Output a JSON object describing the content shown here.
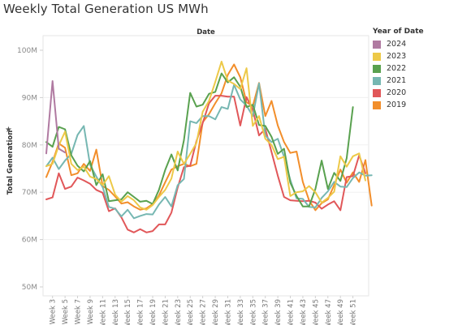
{
  "chart_data": {
    "type": "line",
    "title": "Weekly Total Generation US MWh",
    "column_header": "Date",
    "ylabel": "Total Generation",
    "ylim": [
      50000000,
      100000000
    ],
    "y_ticks": [
      "100M",
      "90M",
      "80M",
      "70M",
      "60M",
      "50M"
    ],
    "x_ticks": [
      "Week 3",
      "Week 5",
      "Week 7",
      "Week 9",
      "Week 11",
      "Week 13",
      "Week 15",
      "Week 17",
      "Week 19",
      "Week 21",
      "Week 23",
      "Week 25",
      "Week 27",
      "Week 29",
      "Week 31",
      "Week 33",
      "Week 35",
      "Week 37",
      "Week 39",
      "Week 41",
      "Week 43",
      "Week 45",
      "Week 47",
      "Week 49",
      "Week 51"
    ],
    "weeks": [
      2,
      53
    ],
    "legend_title": "Year of Date",
    "series": [
      {
        "name": "2019",
        "color": "#f28e2b",
        "start_week": 2,
        "values": [
          73.2,
          76.4,
          80.3,
          79.4,
          73.6,
          74.0,
          76.0,
          74.5,
          79.0,
          71.3,
          70.5,
          69.1,
          67.6,
          67.9,
          67.0,
          66.3,
          66.6,
          67.5,
          69.3,
          72.1,
          74.8,
          75.5,
          76.0,
          75.5,
          76.0,
          84.8,
          86.5,
          88.8,
          90.9,
          94.8,
          97.0,
          94.3,
          89.0,
          88.2,
          93.1,
          86.1,
          89.3,
          84.1,
          80.6,
          78.3,
          78.6,
          72.2,
          68.3,
          66.2,
          67.7,
          68.5,
          71.5,
          74.8,
          72.0,
          74.2,
          72.2,
          76.8,
          67.2
        ]
      },
      {
        "name": "2020",
        "color": "#e15759",
        "start_week": 2,
        "values": [
          68.5,
          68.9,
          74.0,
          70.7,
          71.2,
          73.1,
          72.5,
          71.8,
          70.5,
          69.9,
          66.0,
          66.6,
          64.7,
          62.1,
          61.5,
          62.2,
          61.5,
          61.8,
          63.2,
          63.2,
          65.7,
          71.0,
          75.3,
          75.6,
          80.8,
          84.6,
          88.8,
          90.4,
          90.4,
          90.2,
          90.2,
          84.1,
          90.1,
          87.4,
          82.0,
          83.4,
          78.5,
          73.5,
          69.0,
          68.3,
          68.2,
          68.1,
          68.2,
          67.8,
          66.5,
          67.4,
          68.1,
          66.2,
          73.2,
          73.4,
          77.8,
          74.0
        ]
      },
      {
        "name": "2021",
        "color": "#76b7b2",
        "start_week": 2,
        "values": [
          75.5,
          77.3,
          74.9,
          76.7,
          78.1,
          82.1,
          84.0,
          75.8,
          73.3,
          71.1,
          66.9,
          66.5,
          64.9,
          66.3,
          64.5,
          65.0,
          65.4,
          65.3,
          67.4,
          69.0,
          67.0,
          71.5,
          72.8,
          85.0,
          84.6,
          86.1,
          86.1,
          85.4,
          88.0,
          87.6,
          92.7,
          89.6,
          88.3,
          86.1,
          93.0,
          82.0,
          80.6,
          81.3,
          77.5,
          72.6,
          68.7,
          68.6,
          66.9,
          66.8,
          68.8,
          70.2,
          72.2,
          71.2,
          71.1,
          73.0,
          74.2,
          73.5,
          73.6
        ]
      },
      {
        "name": "2022",
        "color": "#59a14f",
        "start_week": 2,
        "values": [
          80.6,
          79.6,
          83.8,
          83.3,
          77.8,
          75.6,
          74.4,
          76.6,
          71.5,
          73.8,
          68.1,
          68.3,
          68.5,
          70.0,
          69.0,
          68.0,
          68.2,
          67.5,
          70.5,
          74.7,
          78.0,
          74.6,
          81.0,
          91.0,
          88.1,
          88.5,
          90.8,
          91.2,
          95.1,
          93.2,
          94.3,
          92.3,
          88.0,
          88.5,
          84.2,
          84.0,
          81.7,
          78.1,
          79.2,
          72.0,
          69.2,
          67.0,
          67.0,
          70.7,
          76.7,
          70.7,
          74.1,
          72.4,
          77.2,
          88.0
        ]
      },
      {
        "name": "2023",
        "color": "#edc948",
        "start_week": 2,
        "values": [
          75.5,
          76.0,
          79.9,
          82.8,
          76.0,
          74.7,
          75.4,
          73.3,
          72.8,
          71.5,
          73.4,
          69.5,
          68.0,
          69.2,
          68.3,
          66.8,
          66.3,
          67.3,
          69.0,
          70.5,
          72.9,
          78.6,
          76.0,
          78.1,
          80.4,
          87.0,
          89.3,
          93.3,
          97.6,
          93.6,
          92.9,
          91.8,
          96.2,
          84.0,
          86.1,
          81.3,
          80.0,
          77.0,
          77.5,
          69.2,
          70.0,
          70.2,
          71.3,
          70.0,
          67.8,
          68.8,
          70.1,
          77.6,
          75.4,
          77.6,
          78.2,
          72.5
        ]
      },
      {
        "name": "2024",
        "color": "#b07aa1",
        "start_week": 2,
        "values": [
          78.2,
          93.5,
          79.2,
          78.4
        ]
      }
    ]
  }
}
